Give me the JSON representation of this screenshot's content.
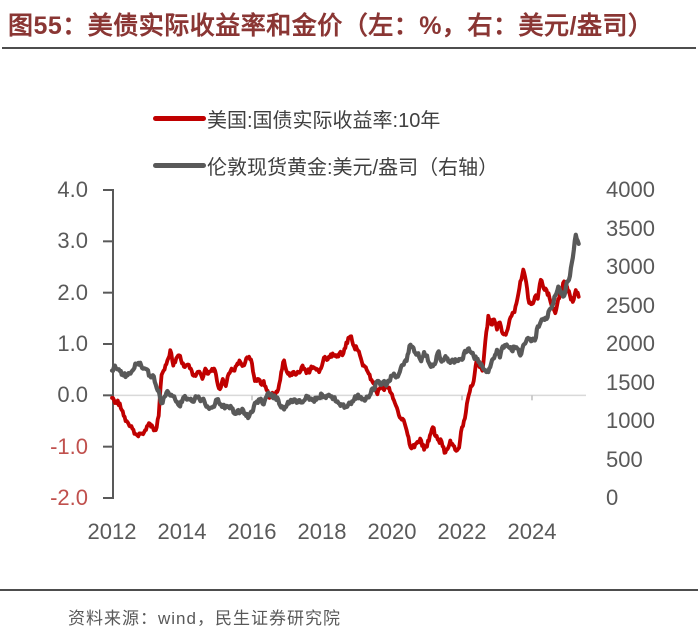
{
  "title": "图55：美债实际收益率和金价（左：%，右：美元/盎司）",
  "legend": {
    "items": [
      {
        "label": "美国:国债实际收益率:10年",
        "color": "#c00000"
      },
      {
        "label": "伦敦现货黄金:美元/盎司（右轴）",
        "color": "#595959"
      }
    ]
  },
  "source": "资料来源：wind，民生证券研究院",
  "colors": {
    "title": "#8a3634",
    "series_red": "#c00000",
    "series_gray": "#595959",
    "axis_text": "#595959",
    "negative_tick": "#c0504d",
    "legend_text": "#3f3f3f",
    "rule": "#4d4d4d",
    "zero_line": "#d9d9d9",
    "zero_tick": "#bfbfbf"
  },
  "chart_data": {
    "type": "line",
    "title": "图55：美债实际收益率和金价（左：%，右：美元/盎司）",
    "x_start_year": 2012,
    "points_per_year": 12,
    "grid": "zero-line-only",
    "legend_position": "top-left",
    "left_axis": {
      "range": [
        -2.0,
        4.0
      ],
      "ticks": [
        {
          "label": "4.0",
          "value": 4.0
        },
        {
          "label": "3.0",
          "value": 3.0
        },
        {
          "label": "2.0",
          "value": 2.0
        },
        {
          "label": "1.0",
          "value": 1.0
        },
        {
          "label": "0.0",
          "value": 0.0
        },
        {
          "label": "-1.0",
          "value": -1.0
        },
        {
          "label": "-2.0",
          "value": -2.0
        }
      ]
    },
    "right_axis": {
      "range": [
        0,
        4000
      ],
      "ticks": [
        {
          "label": "4000",
          "value": 4000
        },
        {
          "label": "3500",
          "value": 3500
        },
        {
          "label": "3000",
          "value": 3000
        },
        {
          "label": "2500",
          "value": 2500
        },
        {
          "label": "2000",
          "value": 2000
        },
        {
          "label": "1500",
          "value": 1500
        },
        {
          "label": "1000",
          "value": 1000
        },
        {
          "label": "500",
          "value": 500
        },
        {
          "label": "0",
          "value": 0
        }
      ]
    },
    "x_axis": {
      "ticks": [
        {
          "label": "2012",
          "year": 2012
        },
        {
          "label": "2014",
          "year": 2014
        },
        {
          "label": "2016",
          "year": 2016
        },
        {
          "label": "2018",
          "year": 2018
        },
        {
          "label": "2020",
          "year": 2020
        },
        {
          "label": "2022",
          "year": 2022
        },
        {
          "label": "2024",
          "year": 2024
        }
      ]
    },
    "series": [
      {
        "name": "美国:国债实际收益率:10年",
        "axis": "left",
        "color": "#c00000",
        "values": [
          -0.05,
          -0.15,
          -0.1,
          -0.25,
          -0.4,
          -0.5,
          -0.6,
          -0.65,
          -0.75,
          -0.8,
          -0.75,
          -0.72,
          -0.6,
          -0.55,
          -0.62,
          -0.68,
          -0.4,
          0.4,
          0.5,
          0.68,
          0.88,
          0.58,
          0.72,
          0.78,
          0.62,
          0.55,
          0.6,
          0.52,
          0.38,
          0.42,
          0.46,
          0.32,
          0.52,
          0.42,
          0.48,
          0.52,
          0.28,
          0.12,
          0.32,
          0.18,
          0.42,
          0.52,
          0.48,
          0.62,
          0.65,
          0.58,
          0.72,
          0.75,
          0.62,
          0.28,
          0.32,
          0.22,
          0.28,
          0.1,
          -0.05,
          0.05,
          0.02,
          0.12,
          0.45,
          0.68,
          0.45,
          0.38,
          0.45,
          0.4,
          0.45,
          0.55,
          0.52,
          0.45,
          0.5,
          0.55,
          0.5,
          0.45,
          0.58,
          0.75,
          0.7,
          0.8,
          0.78,
          0.75,
          0.82,
          0.78,
          0.92,
          1.12,
          1.15,
          0.95,
          0.9,
          0.78,
          0.58,
          0.55,
          0.42,
          0.3,
          0.25,
          0.02,
          0.15,
          0.12,
          0.2,
          0.15,
          0.02,
          -0.15,
          -0.3,
          -0.45,
          -0.48,
          -0.68,
          -0.95,
          -1.02,
          -0.95,
          -0.9,
          -0.88,
          -1.06,
          -1.0,
          -0.78,
          -0.62,
          -0.8,
          -0.88,
          -0.9,
          -1.12,
          -1.05,
          -0.88,
          -0.98,
          -1.08,
          -1.02,
          -0.62,
          -0.45,
          -0.08,
          0.18,
          0.28,
          0.68,
          0.55,
          0.48,
          1.05,
          1.55,
          1.38,
          1.48,
          1.28,
          1.42,
          1.2,
          1.18,
          1.38,
          1.55,
          1.62,
          1.88,
          2.22,
          2.45,
          2.2,
          1.8,
          1.78,
          1.92,
          1.88,
          2.25,
          2.08,
          2.05,
          1.9,
          1.72,
          1.6,
          1.88,
          2.02,
          2.22,
          2.12,
          1.95,
          1.82,
          2.05,
          1.92
        ]
      },
      {
        "name": "伦敦现货黄金:美元/盎司（右轴）",
        "axis": "right",
        "color": "#595959",
        "values": [
          1655,
          1720,
          1670,
          1650,
          1590,
          1600,
          1615,
          1655,
          1745,
          1755,
          1720,
          1685,
          1670,
          1590,
          1595,
          1470,
          1395,
          1230,
          1315,
          1390,
          1330,
          1320,
          1250,
          1200,
          1245,
          1325,
          1290,
          1290,
          1250,
          1315,
          1285,
          1285,
          1215,
          1170,
          1175,
          1185,
          1280,
          1215,
          1185,
          1185,
          1190,
          1170,
          1095,
          1135,
          1115,
          1140,
          1065,
          1060,
          1115,
          1235,
          1235,
          1290,
          1215,
          1320,
          1355,
          1310,
          1315,
          1275,
          1175,
          1150,
          1210,
          1250,
          1245,
          1265,
          1270,
          1240,
          1270,
          1320,
          1280,
          1270,
          1275,
          1300,
          1345,
          1320,
          1325,
          1315,
          1300,
          1250,
          1225,
          1200,
          1190,
          1215,
          1220,
          1280,
          1320,
          1315,
          1290,
          1285,
          1305,
          1410,
          1415,
          1520,
          1470,
          1510,
          1460,
          1515,
          1590,
          1585,
          1575,
          1690,
          1730,
          1780,
          1975,
          1965,
          1885,
          1880,
          1775,
          1895,
          1850,
          1730,
          1710,
          1770,
          1905,
          1770,
          1815,
          1815,
          1755,
          1785,
          1775,
          1805,
          1795,
          1910,
          1935,
          1895,
          1840,
          1805,
          1765,
          1710,
          1660,
          1635,
          1750,
          1815,
          1925,
          1825,
          1970,
          1985,
          1960,
          1920,
          1965,
          1940,
          1850,
          1985,
          2035,
          2065,
          2040,
          2045,
          2230,
          2290,
          2330,
          2325,
          2445,
          2500,
          2630,
          2745,
          2650,
          2625,
          2810,
          2880,
          3120,
          3420,
          3300
        ]
      }
    ]
  }
}
